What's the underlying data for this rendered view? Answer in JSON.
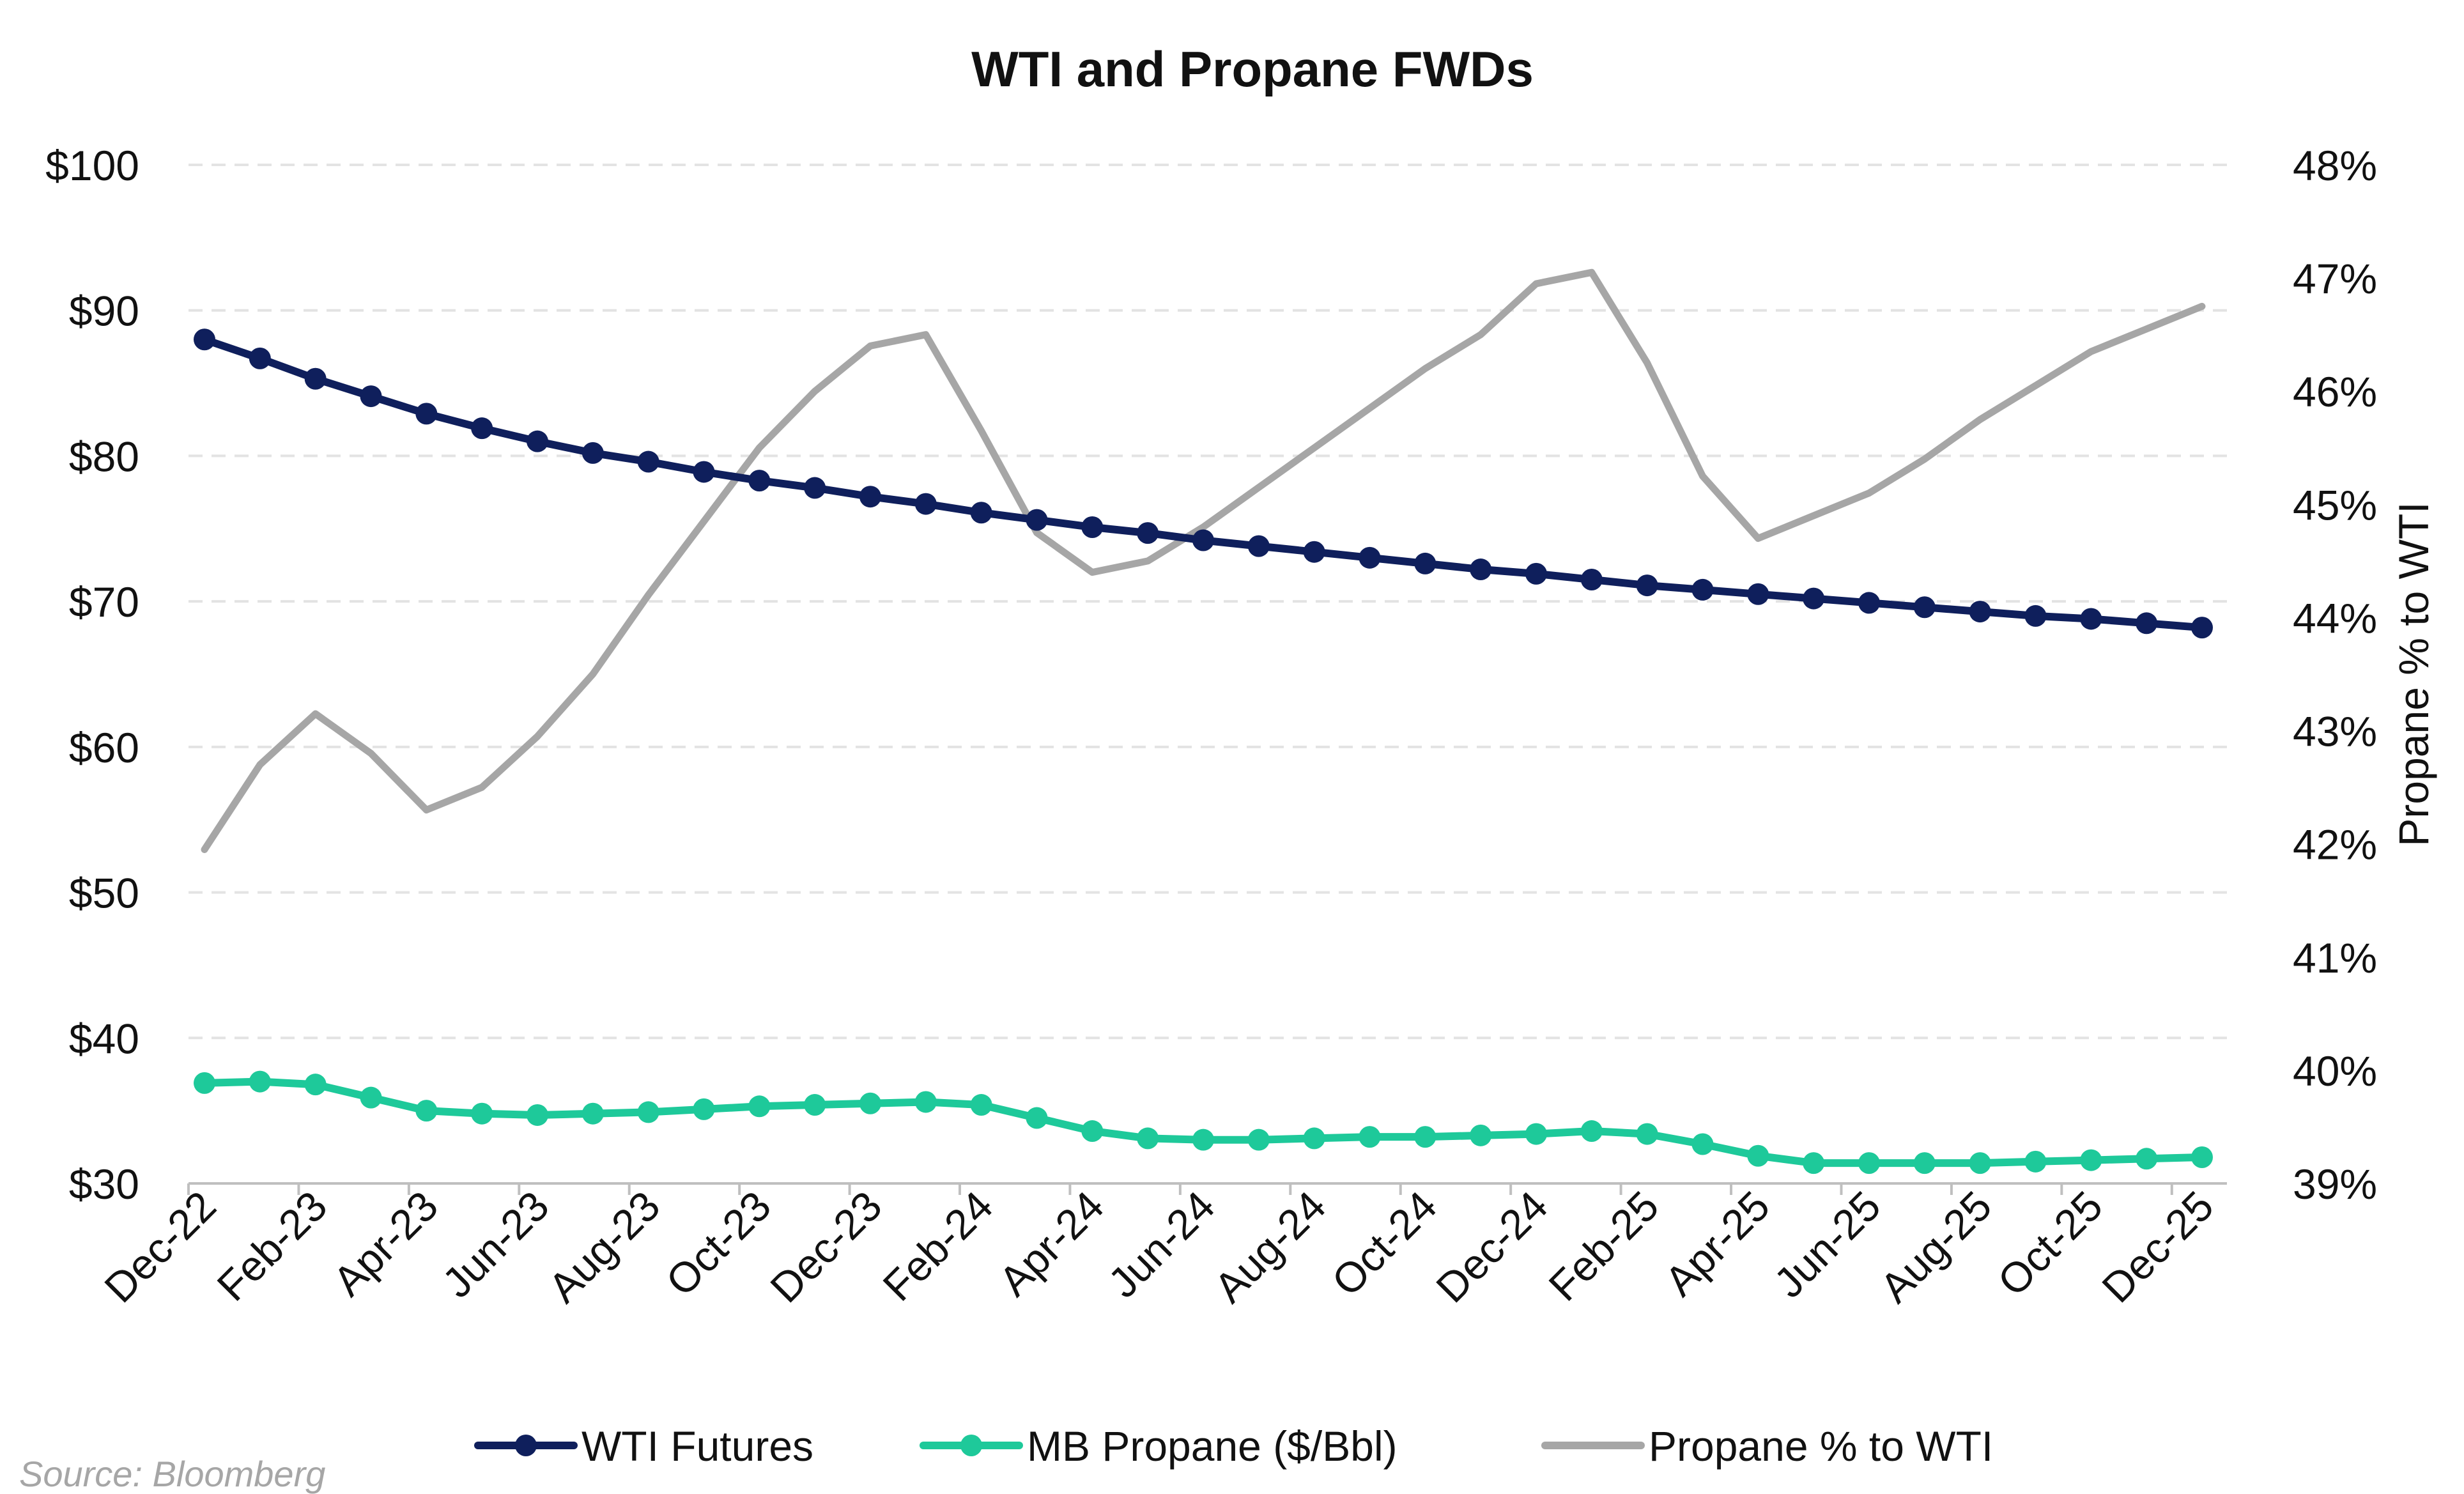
{
  "chart_data": {
    "type": "line",
    "title": "WTI and Propane FWDs",
    "x_categories": [
      "Dec-22",
      "Jan-23",
      "Feb-23",
      "Mar-23",
      "Apr-23",
      "May-23",
      "Jun-23",
      "Jul-23",
      "Aug-23",
      "Sep-23",
      "Oct-23",
      "Nov-23",
      "Dec-23",
      "Jan-24",
      "Feb-24",
      "Mar-24",
      "Apr-24",
      "May-24",
      "Jun-24",
      "Jul-24",
      "Aug-24",
      "Sep-24",
      "Oct-24",
      "Nov-24",
      "Dec-24",
      "Jan-25",
      "Feb-25",
      "Mar-25",
      "Apr-25",
      "May-25",
      "Jun-25",
      "Jul-25",
      "Aug-25",
      "Sep-25",
      "Oct-25",
      "Nov-25",
      "Dec-25"
    ],
    "x_tick_labels": [
      "Dec-22",
      "Feb-23",
      "Apr-23",
      "Jun-23",
      "Aug-23",
      "Oct-23",
      "Dec-23",
      "Feb-24",
      "Apr-24",
      "Jun-24",
      "Aug-24",
      "Oct-24",
      "Dec-24",
      "Feb-25",
      "Apr-25",
      "Jun-25",
      "Aug-25",
      "Oct-25",
      "Dec-25"
    ],
    "y_left": {
      "min": 30,
      "max": 100,
      "ticks": [
        "$100",
        "$90",
        "$80",
        "$70",
        "$60",
        "$50",
        "$40",
        "$30"
      ],
      "tick_values": [
        100,
        90,
        80,
        70,
        60,
        50,
        40,
        30
      ]
    },
    "y_right": {
      "label": "Propane % to WTI",
      "min": 39,
      "max": 48,
      "ticks": [
        "48%",
        "47%",
        "46%",
        "45%",
        "44%",
        "43%",
        "42%",
        "41%",
        "40%",
        "39%"
      ],
      "tick_values": [
        48,
        47,
        46,
        45,
        44,
        43,
        42,
        41,
        40,
        39
      ]
    },
    "series": [
      {
        "name": "WTI Futures",
        "axis": "left",
        "color": "#0f1f5c",
        "markers": true,
        "values": [
          88.0,
          86.7,
          85.3,
          84.1,
          82.9,
          81.9,
          81.0,
          80.2,
          79.6,
          78.9,
          78.3,
          77.8,
          77.2,
          76.7,
          76.1,
          75.6,
          75.1,
          74.7,
          74.2,
          73.8,
          73.4,
          73.0,
          72.6,
          72.2,
          71.9,
          71.5,
          71.1,
          70.8,
          70.5,
          70.2,
          69.9,
          69.6,
          69.3,
          69.0,
          68.8,
          68.5,
          68.2
        ]
      },
      {
        "name": "MB Propane ($/Bbl)",
        "axis": "left",
        "color": "#1ec99a",
        "markers": true,
        "values": [
          36.9,
          37.0,
          36.8,
          35.9,
          35.0,
          34.8,
          34.7,
          34.8,
          34.9,
          35.1,
          35.3,
          35.4,
          35.5,
          35.6,
          35.4,
          34.5,
          33.6,
          33.1,
          33.0,
          33.0,
          33.1,
          33.2,
          33.2,
          33.3,
          33.4,
          33.6,
          33.4,
          32.7,
          31.9,
          31.4,
          31.4,
          31.4,
          31.4,
          31.5,
          31.6,
          31.7,
          31.8
        ]
      },
      {
        "name": "Propane % to WTI",
        "axis": "right",
        "color": "#a6a6a6",
        "markers": false,
        "values": [
          41.95,
          42.7,
          43.15,
          42.8,
          42.3,
          42.5,
          42.95,
          43.5,
          44.2,
          44.85,
          45.5,
          46.0,
          46.4,
          46.5,
          45.65,
          44.75,
          44.4,
          44.5,
          44.8,
          45.15,
          45.5,
          45.85,
          46.2,
          46.5,
          46.95,
          47.05,
          46.25,
          45.25,
          44.7,
          44.9,
          45.1,
          45.4,
          45.75,
          46.05,
          46.35,
          46.55,
          46.75
        ]
      }
    ],
    "legend_position": "bottom",
    "grid": "horizontal-dashed",
    "source": "Source: Bloomberg"
  }
}
